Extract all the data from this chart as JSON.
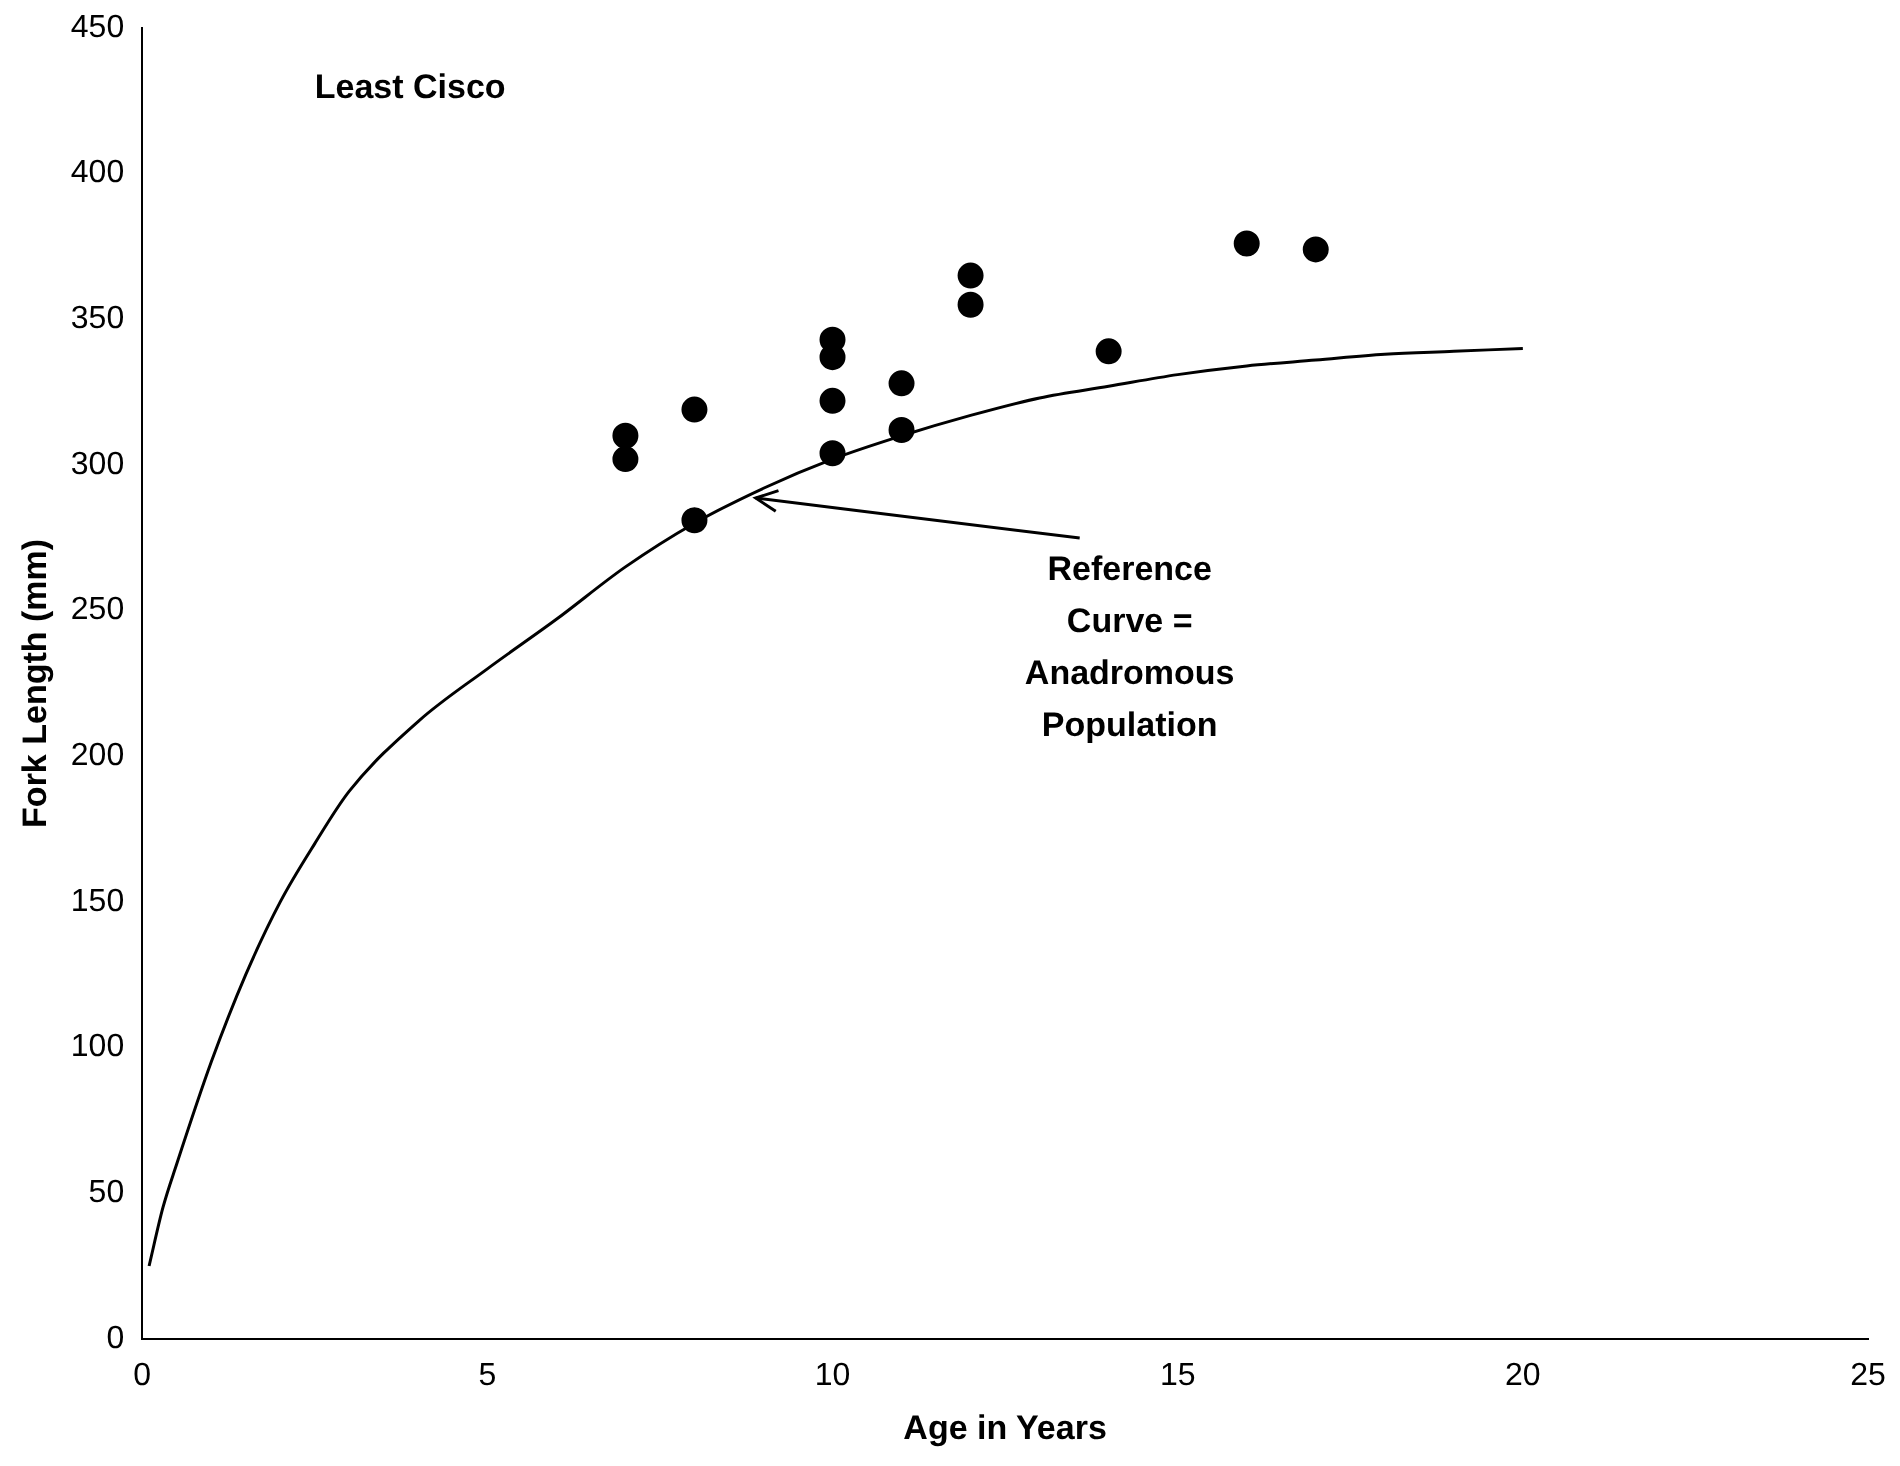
{
  "chart_data": {
    "type": "scatter",
    "title": "Least Cisco",
    "xlabel": "Age in Years",
    "ylabel": "Fork Length (mm)",
    "xlim": [
      0,
      25
    ],
    "xticks": [
      0,
      5,
      10,
      15,
      20,
      25
    ],
    "ylim": [
      0,
      450
    ],
    "yticks": [
      0,
      50,
      100,
      150,
      200,
      250,
      300,
      350,
      400,
      450
    ],
    "grid": false,
    "legend": false,
    "series": [
      {
        "color": "#000000",
        "marker": "circle",
        "x": [
          7,
          7,
          8,
          8,
          10,
          10,
          10,
          10,
          11,
          11,
          12,
          12,
          14,
          16,
          17
        ],
        "values": [
          310,
          302,
          319,
          281,
          343,
          337,
          322,
          304,
          328,
          312,
          365,
          355,
          339,
          376,
          374
        ]
      },
      {
        "type": "line",
        "color": "#000000",
        "marker": "none",
        "line_style": "solid",
        "x": [
          0.1,
          0.3,
          0.5,
          1,
          1.5,
          2,
          2.5,
          3,
          4,
          5,
          6,
          7,
          8,
          9,
          10,
          11,
          12,
          13,
          14,
          15,
          16,
          17,
          18,
          19,
          20
        ],
        "values": [
          25,
          45,
          60,
          95,
          125,
          150,
          170,
          188,
          212,
          230,
          247,
          265,
          280,
          292,
          302,
          310,
          317,
          323,
          327,
          331,
          334,
          336,
          338,
          339,
          340
        ]
      }
    ],
    "annotations": [
      {
        "text": "Reference Curve = Anadromous Population",
        "x": 8.8,
        "y": 290
      }
    ]
  }
}
